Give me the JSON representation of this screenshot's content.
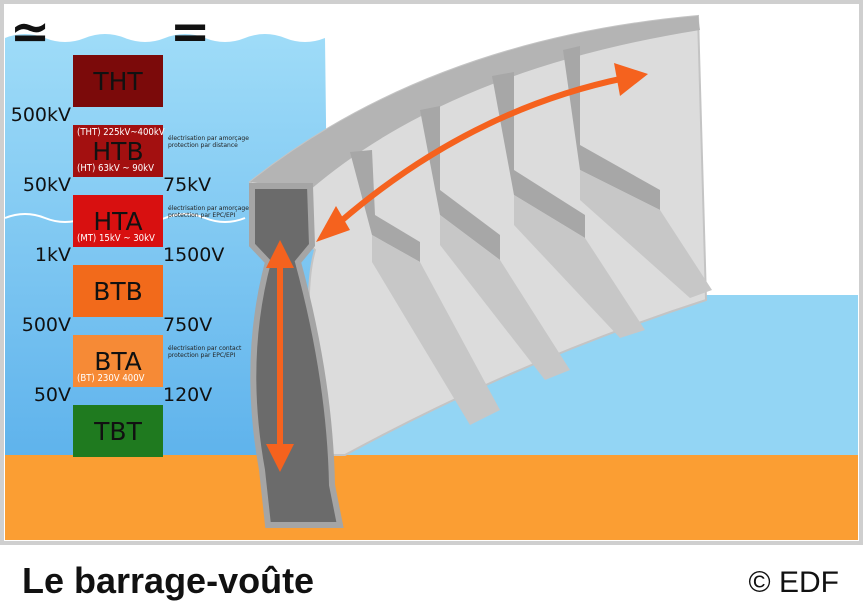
{
  "symbols": {
    "alternating": "≃",
    "direct": "="
  },
  "levels": [
    {
      "code": "THT",
      "color": "#7b0a0a",
      "range_top": "",
      "range_bottom": "",
      "note": ""
    },
    {
      "code": "HTB",
      "color": "#a31010",
      "range_top": "(THT)  225kV~400kV",
      "range_bottom": "(HT)  63kV ~ 90kV",
      "note": "électrisation par amorçage protection par distance"
    },
    {
      "code": "HTA",
      "color": "#d81010",
      "range_top": "",
      "range_bottom": "(MT)    15kV ~ 30kV",
      "note": "électrisation par amorçage protection par EPC/EPI"
    },
    {
      "code": "BTB",
      "color": "#f26a1b",
      "range_top": "",
      "range_bottom": "",
      "note": ""
    },
    {
      "code": "BTA",
      "color": "#f68a36",
      "range_top": "",
      "range_bottom": "(BT)    230V 400V",
      "note": "électrisation par contact protection par EPC/EPI"
    },
    {
      "code": "TBT",
      "color": "#1f7a1f",
      "range_top": "",
      "range_bottom": "",
      "note": ""
    }
  ],
  "thresholds": [
    {
      "ac": "500kV",
      "dc": ""
    },
    {
      "ac": "50kV",
      "dc": "75kV"
    },
    {
      "ac": "1kV",
      "dc": "1500V"
    },
    {
      "ac": "500V",
      "dc": "750V"
    },
    {
      "ac": "50V",
      "dc": "120V"
    }
  ],
  "caption": {
    "title": "Le barrage-voûte",
    "credit": "© EDF"
  },
  "colors": {
    "water": "#93d5f4",
    "water_deep": "#6cbbee",
    "ground": "#fb9e33",
    "dam_light": "#dcdcdc",
    "dam_mid": "#b4b4b4",
    "dam_dark": "#6b6b6b",
    "arrow": "#f5621e",
    "sky": "#ffffff"
  }
}
